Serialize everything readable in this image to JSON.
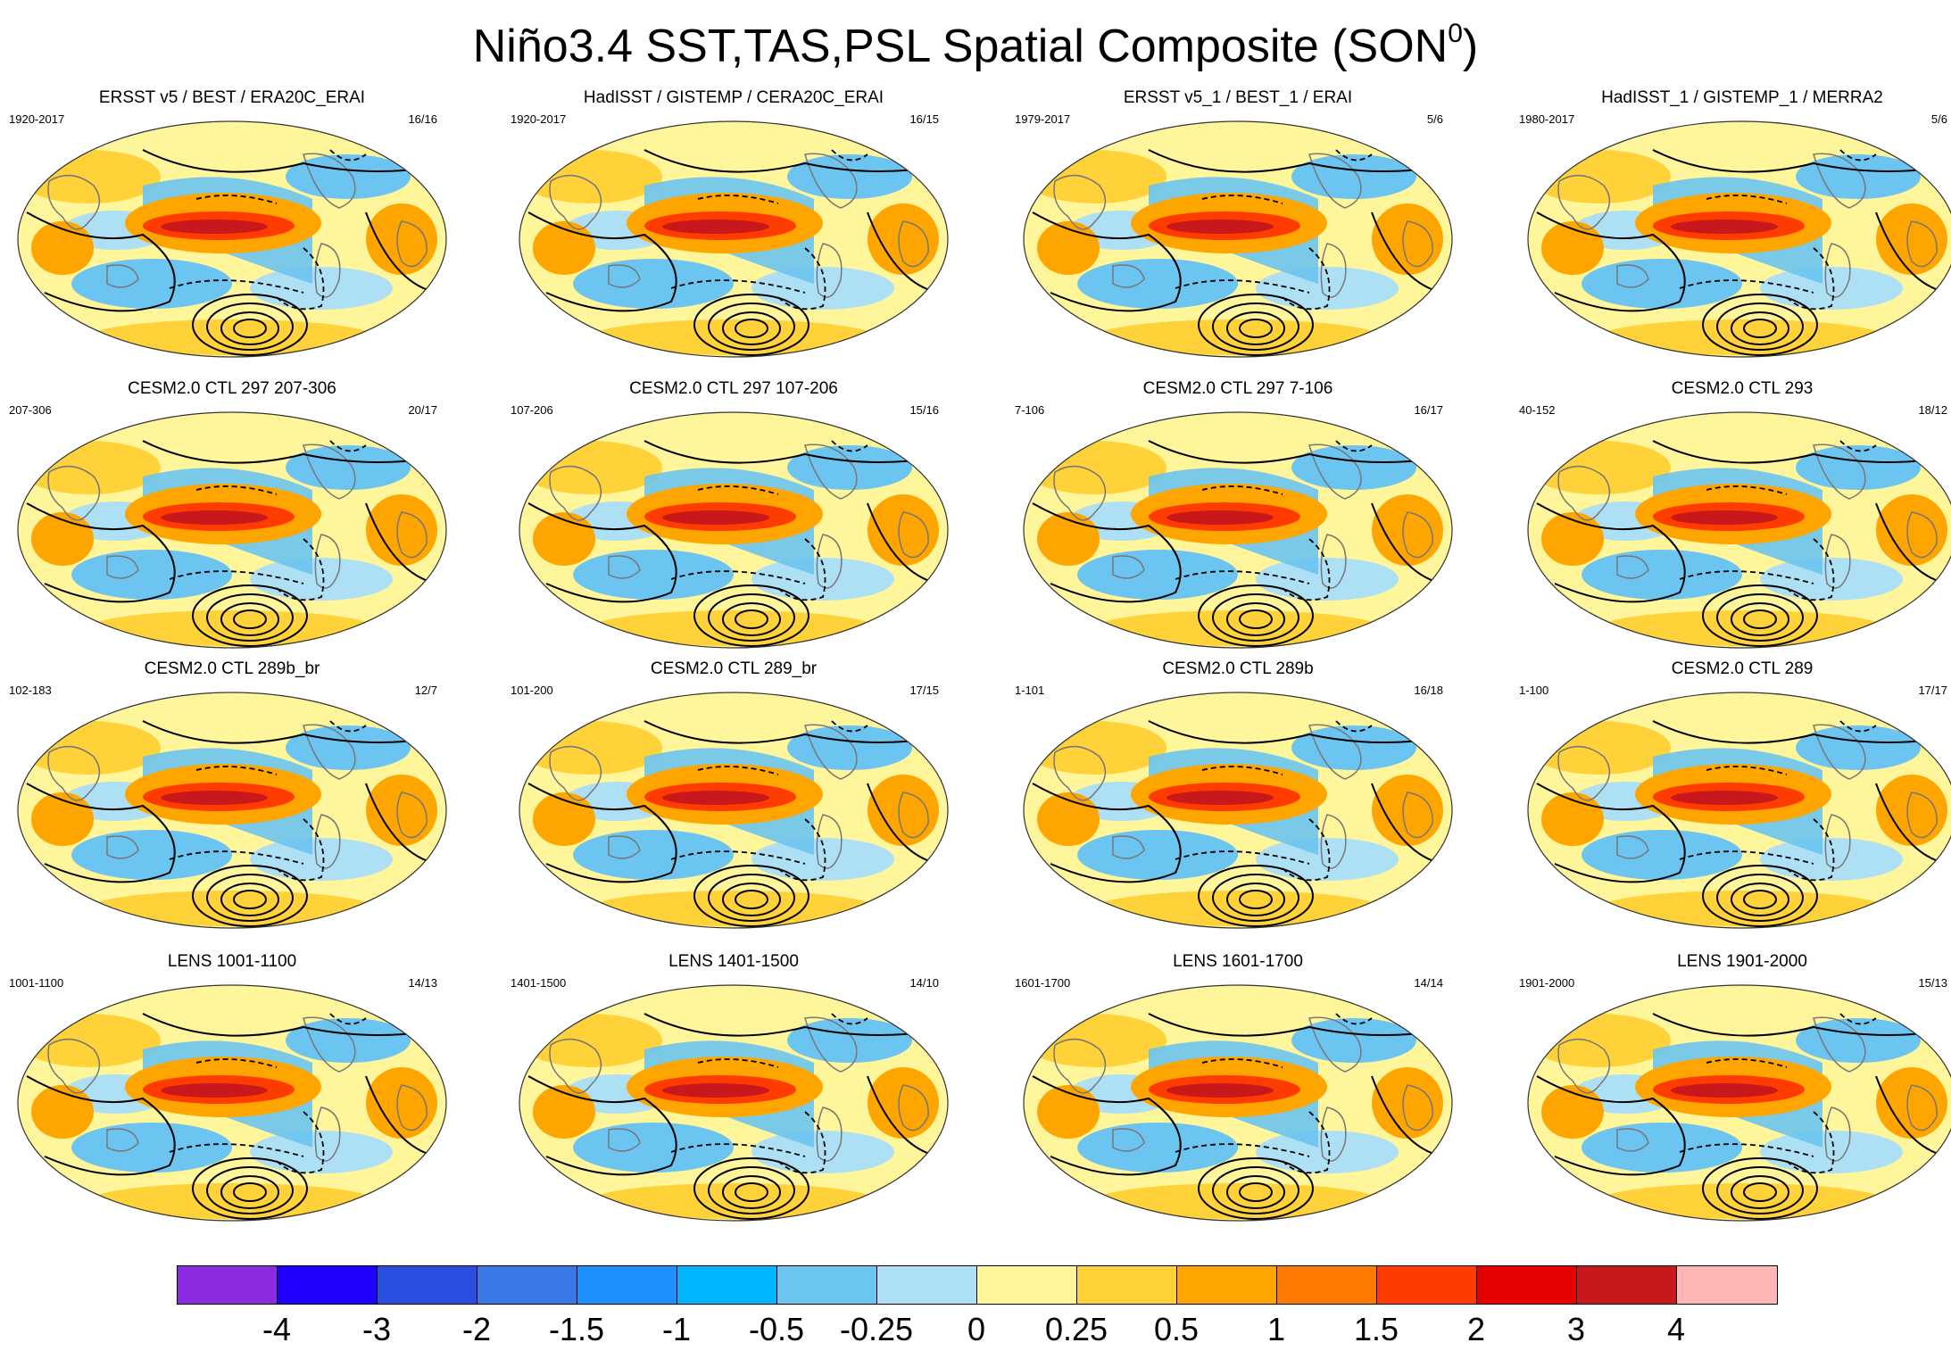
{
  "figure": {
    "title_main": "Niño3.4 SST,TAS,PSL Spatial Composite (SON",
    "title_sup": "0",
    "title_close": ")"
  },
  "panels": [
    {
      "title": "ERSST v5 / BEST / ERA20C_ERAI",
      "years": "1920-2017",
      "count": "16/16"
    },
    {
      "title": "HadISST / GISTEMP / CERA20C_ERAI",
      "years": "1920-2017",
      "count": "16/15"
    },
    {
      "title": "ERSST v5_1 / BEST_1 / ERAI",
      "years": "1979-2017",
      "count": "5/6"
    },
    {
      "title": "HadISST_1 / GISTEMP_1 / MERRA2",
      "years": "1980-2017",
      "count": "5/6"
    },
    {
      "title": "CESM2.0 CTL 297 207-306",
      "years": "207-306",
      "count": "20/17"
    },
    {
      "title": "CESM2.0 CTL 297 107-206",
      "years": "107-206",
      "count": "15/16"
    },
    {
      "title": "CESM2.0 CTL 297 7-106",
      "years": "7-106",
      "count": "16/17"
    },
    {
      "title": "CESM2.0 CTL 293",
      "years": "40-152",
      "count": "18/12"
    },
    {
      "title": "CESM2.0 CTL 289b_br",
      "years": "102-183",
      "count": "12/7"
    },
    {
      "title": "CESM2.0 CTL 289_br",
      "years": "101-200",
      "count": "17/15"
    },
    {
      "title": "CESM2.0 CTL 289b",
      "years": "1-101",
      "count": "16/18"
    },
    {
      "title": "CESM2.0 CTL 289",
      "years": "1-100",
      "count": "17/17"
    },
    {
      "title": "LENS 1001-1100",
      "years": "1001-1100",
      "count": "14/13"
    },
    {
      "title": "LENS 1401-1500",
      "years": "1401-1500",
      "count": "14/10"
    },
    {
      "title": "LENS 1601-1700",
      "years": "1601-1700",
      "count": "14/14"
    },
    {
      "title": "LENS 1901-2000",
      "years": "1901-2000",
      "count": "15/13"
    }
  ],
  "colorbar": {
    "colors": [
      "#8a2be2",
      "#1f00ff",
      "#2c4fe0",
      "#3a78e8",
      "#1f90ff",
      "#00b7ff",
      "#6cc4f0",
      "#aee0f5",
      "#fff59a",
      "#ffd23a",
      "#ffa500",
      "#ff7a00",
      "#ff3c00",
      "#e60000",
      "#c8181c",
      "#ffb6b6"
    ],
    "labels": [
      "-4",
      "-3",
      "-2",
      "-1.5",
      "-1",
      "-0.5",
      "-0.25",
      "0",
      "0.25",
      "0.5",
      "1",
      "1.5",
      "2",
      "3",
      "4"
    ]
  }
}
